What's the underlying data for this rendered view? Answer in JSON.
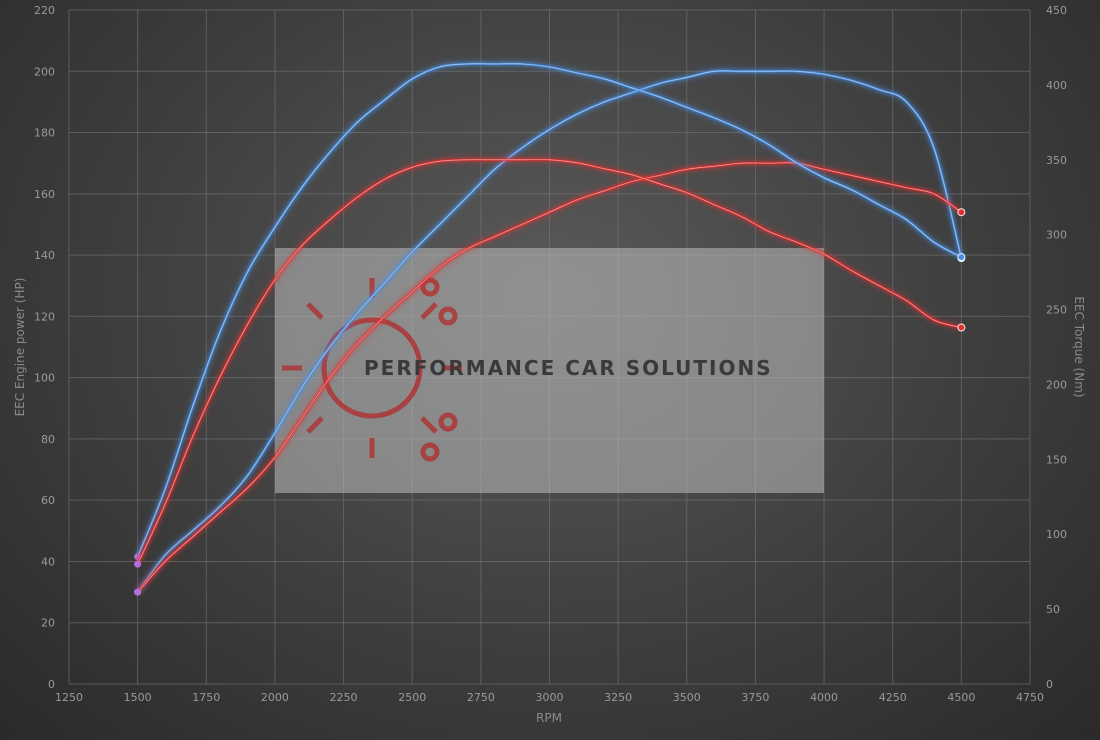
{
  "chart_data": {
    "type": "line",
    "xlabel": "RPM",
    "ylabel_left": "EEC Engine power (HP)",
    "ylabel_right": "EEC Torque (Nm)",
    "xlim": [
      1250,
      4750
    ],
    "x_ticks": [
      1250,
      1500,
      1750,
      2000,
      2250,
      2500,
      2750,
      3000,
      3250,
      3500,
      3750,
      4000,
      4250,
      4500,
      4750
    ],
    "ylim_left": [
      0,
      220
    ],
    "y_ticks_left": [
      0,
      20,
      40,
      60,
      80,
      100,
      120,
      140,
      160,
      180,
      200,
      220
    ],
    "ylim_right": [
      0,
      450
    ],
    "y_ticks_right": [
      0,
      50,
      100,
      150,
      200,
      250,
      300,
      350,
      400,
      450
    ],
    "grid": true,
    "series": [
      {
        "axis": "left",
        "color": "#4a90e2",
        "x": [
          1500,
          1600,
          1700,
          1800,
          1900,
          2000,
          2100,
          2200,
          2300,
          2400,
          2500,
          2600,
          2700,
          2800,
          2900,
          3000,
          3100,
          3200,
          3300,
          3400,
          3500,
          3600,
          3700,
          3800,
          3900,
          4000,
          4100,
          4200,
          4300,
          4400,
          4500
        ],
        "y": [
          30,
          42,
          50,
          58,
          68,
          82,
          97,
          110,
          121,
          131,
          141,
          150,
          159,
          168,
          175,
          181,
          186,
          190,
          193,
          196,
          198,
          200,
          200,
          200,
          200,
          199,
          197,
          194,
          190,
          175,
          139
        ]
      },
      {
        "axis": "left",
        "color": "#e03030",
        "x": [
          1500,
          1600,
          1700,
          1800,
          1900,
          2000,
          2100,
          2200,
          2300,
          2400,
          2500,
          2600,
          2700,
          2800,
          2900,
          3000,
          3100,
          3200,
          3300,
          3400,
          3500,
          3600,
          3700,
          3800,
          3900,
          4000,
          4100,
          4200,
          4300,
          4400,
          4500
        ],
        "y": [
          30,
          40,
          48,
          56,
          64,
          74,
          87,
          100,
          111,
          120,
          128,
          136,
          142,
          146,
          150,
          154,
          158,
          161,
          164,
          166,
          168,
          169,
          170,
          170,
          170,
          168,
          166,
          164,
          162,
          160,
          154
        ]
      },
      {
        "axis": "right",
        "color": "#4a90e2",
        "x": [
          1500,
          1600,
          1700,
          1800,
          1900,
          2000,
          2100,
          2200,
          2300,
          2400,
          2500,
          2600,
          2700,
          2800,
          2900,
          3000,
          3100,
          3200,
          3300,
          3400,
          3500,
          3600,
          3700,
          3800,
          3900,
          4000,
          4100,
          4200,
          4300,
          4400,
          4500
        ],
        "y": [
          85,
          130,
          185,
          235,
          275,
          305,
          332,
          355,
          375,
          390,
          404,
          412,
          414,
          414,
          414,
          412,
          408,
          404,
          398,
          392,
          385,
          378,
          370,
          360,
          348,
          338,
          330,
          320,
          310,
          295,
          285
        ]
      },
      {
        "axis": "right",
        "color": "#e03030",
        "x": [
          1500,
          1600,
          1700,
          1800,
          1900,
          2000,
          2100,
          2200,
          2300,
          2400,
          2500,
          2600,
          2700,
          2800,
          2900,
          3000,
          3100,
          3200,
          3300,
          3400,
          3500,
          3600,
          3700,
          3800,
          3900,
          4000,
          4100,
          4200,
          4300,
          4400,
          4500
        ],
        "y": [
          80,
          120,
          165,
          205,
          240,
          270,
          293,
          310,
          325,
          337,
          345,
          349,
          350,
          350,
          350,
          350,
          348,
          344,
          340,
          334,
          328,
          320,
          312,
          302,
          295,
          287,
          276,
          266,
          256,
          243,
          238
        ]
      }
    ]
  },
  "watermark": {
    "text": "PERFORMANCE CAR SOLUTIONS",
    "logo_color": "#b03030"
  }
}
